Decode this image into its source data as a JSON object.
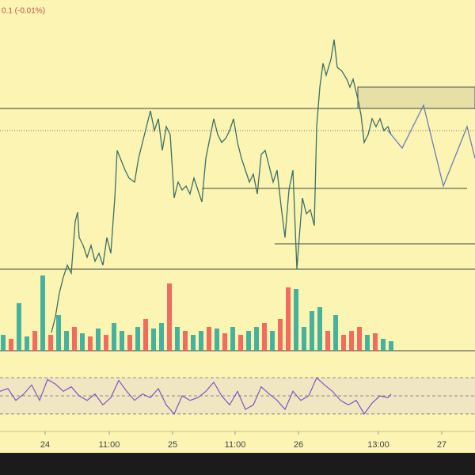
{
  "chart_data": {
    "type": "line",
    "header": "0.1 (-0.01%)",
    "color": "#3d6f63",
    "xlim": [
      0,
      600
    ],
    "ylim": [
      0,
      450
    ],
    "xticks": [
      {
        "value": 57,
        "label": "24"
      },
      {
        "value": 138,
        "label": "11:00"
      },
      {
        "value": 218,
        "label": "25"
      },
      {
        "value": 297,
        "label": "11:00"
      },
      {
        "value": 377,
        "label": "26"
      },
      {
        "value": 478,
        "label": "13:00"
      },
      {
        "value": 558,
        "label": "27"
      }
    ],
    "x": [
      65,
      70,
      75,
      80,
      85,
      90,
      95,
      98,
      100,
      105,
      110,
      115,
      120,
      125,
      130,
      135,
      140,
      145,
      148,
      152,
      158,
      163,
      170,
      175,
      180,
      185,
      190,
      195,
      200,
      205,
      210,
      215,
      220,
      225,
      230,
      235,
      240,
      245,
      250,
      255,
      260,
      265,
      270,
      275,
      280,
      285,
      290,
      295,
      300,
      305,
      310,
      315,
      320,
      325,
      330,
      335,
      340,
      345,
      350,
      355,
      360,
      365,
      370,
      375,
      378,
      382,
      387,
      392,
      397,
      400,
      404,
      408,
      412,
      418,
      422,
      426,
      432,
      438,
      442,
      446,
      452,
      456,
      460,
      465,
      470,
      475,
      480,
      485,
      490,
      494
    ],
    "values": [
      30,
      50,
      80,
      100,
      115,
      105,
      170,
      182,
      150,
      140,
      125,
      140,
      120,
      130,
      115,
      150,
      130,
      200,
      260,
      250,
      235,
      225,
      220,
      250,
      270,
      290,
      310,
      285,
      300,
      260,
      290,
      280,
      200,
      220,
      210,
      215,
      205,
      225,
      210,
      195,
      250,
      275,
      300,
      280,
      270,
      275,
      285,
      300,
      270,
      250,
      235,
      220,
      230,
      205,
      255,
      260,
      240,
      220,
      235,
      190,
      150,
      210,
      235,
      110,
      150,
      200,
      180,
      185,
      165,
      290,
      340,
      370,
      355,
      375,
      400,
      365,
      360,
      350,
      340,
      350,
      325,
      305,
      270,
      280,
      300,
      290,
      300,
      285,
      290,
      280
    ],
    "levels": [
      {
        "value": 313,
        "from": 0,
        "to": 600,
        "style": "solid"
      },
      {
        "value": 285,
        "from": 0,
        "to": 600,
        "style": "dotted"
      },
      {
        "value": 212,
        "from": 255,
        "to": 590,
        "style": "solid"
      },
      {
        "value": 142,
        "from": 347,
        "to": 600,
        "style": "solid"
      },
      {
        "value": 110,
        "from": 0,
        "to": 600,
        "style": "solid"
      }
    ],
    "zone": {
      "from": 452,
      "to": 600,
      "low": 313,
      "high": 340,
      "color": "#e6dfa6"
    },
    "projection": {
      "x": [
        490,
        508,
        535,
        560,
        590,
        600
      ],
      "values": [
        285,
        263,
        317,
        215,
        290,
        250
      ],
      "color": "#6a7fb8"
    },
    "volume": {
      "ylim": [
        0,
        100
      ],
      "x": [
        4,
        14,
        24,
        34,
        44,
        54,
        64,
        74,
        84,
        94,
        104,
        114,
        124,
        134,
        144,
        154,
        164,
        174,
        184,
        194,
        204,
        214,
        224,
        234,
        244,
        254,
        264,
        274,
        284,
        294,
        304,
        314,
        324,
        334,
        344,
        354,
        364,
        374,
        384,
        394,
        404,
        414,
        424,
        434,
        444,
        454,
        464,
        474,
        484,
        494
      ],
      "values": [
        20,
        15,
        60,
        18,
        25,
        95,
        20,
        45,
        25,
        30,
        22,
        18,
        28,
        20,
        35,
        25,
        20,
        30,
        40,
        28,
        35,
        85,
        30,
        25,
        20,
        25,
        30,
        28,
        22,
        30,
        20,
        25,
        30,
        35,
        25,
        40,
        80,
        78,
        30,
        50,
        55,
        25,
        45,
        20,
        25,
        30,
        20,
        22,
        15,
        12
      ],
      "colors": [
        "#26a69a",
        "#ef5350",
        "#26a69a",
        "#26a69a",
        "#ef5350",
        "#26a69a",
        "#ef5350",
        "#26a69a",
        "#26a69a",
        "#ef5350",
        "#26a69a",
        "#ef5350",
        "#26a69a",
        "#ef5350",
        "#26a69a",
        "#26a69a",
        "#ef5350",
        "#26a69a",
        "#ef5350",
        "#26a69a",
        "#26a69a",
        "#ef5350",
        "#26a69a",
        "#ef5350",
        "#26a69a",
        "#26a69a",
        "#ef5350",
        "#26a69a",
        "#ef5350",
        "#26a69a",
        "#ef5350",
        "#26a69a",
        "#26a69a",
        "#ef5350",
        "#26a69a",
        "#ef5350",
        "#ef5350",
        "#26a69a",
        "#26a69a",
        "#26a69a",
        "#26a69a",
        "#ef5350",
        "#26a69a",
        "#ef5350",
        "#ef5350",
        "#ef5350",
        "#26a69a",
        "#ef5350",
        "#26a69a",
        "#26a69a"
      ]
    },
    "rsi": {
      "ylim": [
        15,
        85
      ],
      "levels": [
        70,
        50,
        30
      ],
      "color": "#7e57c2",
      "x": [
        0,
        10,
        20,
        30,
        40,
        50,
        60,
        70,
        80,
        90,
        100,
        110,
        120,
        130,
        140,
        150,
        160,
        170,
        180,
        190,
        200,
        210,
        220,
        230,
        240,
        250,
        260,
        270,
        280,
        290,
        300,
        310,
        320,
        330,
        340,
        350,
        360,
        370,
        380,
        390,
        400,
        410,
        420,
        430,
        440,
        450,
        460,
        470,
        480,
        490,
        494
      ],
      "values": [
        55,
        58,
        45,
        52,
        62,
        45,
        68,
        63,
        55,
        60,
        50,
        45,
        52,
        40,
        48,
        67,
        55,
        45,
        52,
        48,
        58,
        40,
        30,
        50,
        45,
        48,
        55,
        65,
        50,
        40,
        55,
        35,
        40,
        60,
        52,
        45,
        35,
        55,
        45,
        50,
        70,
        62,
        55,
        45,
        40,
        45,
        30,
        42,
        50,
        48,
        52
      ]
    }
  }
}
